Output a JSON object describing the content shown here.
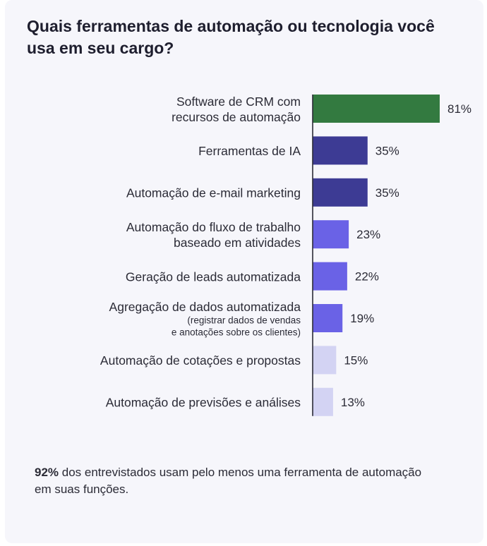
{
  "title": "Quais ferramentas de automação ou tecnologia você usa em seu cargo?",
  "chart_data": {
    "type": "bar",
    "orientation": "horizontal",
    "title": "Quais ferramentas de automação ou tecnologia você usa em seu cargo?",
    "unit": "%",
    "xlim": [
      0,
      100
    ],
    "categories": [
      {
        "lines": [
          "Software de CRM com",
          "recursos de automação"
        ],
        "note": [],
        "value": 81,
        "label": "81%",
        "color": "#337a40"
      },
      {
        "lines": [
          "Ferramentas de IA"
        ],
        "note": [],
        "value": 35,
        "label": "35%",
        "color": "#3d3b94"
      },
      {
        "lines": [
          "Automação de e-mail marketing"
        ],
        "note": [],
        "value": 35,
        "label": "35%",
        "color": "#3d3b94"
      },
      {
        "lines": [
          "Automação do fluxo de trabalho",
          "baseado em atividades"
        ],
        "note": [],
        "value": 23,
        "label": "23%",
        "color": "#6a62e6"
      },
      {
        "lines": [
          "Geração de leads automatizada"
        ],
        "note": [],
        "value": 22,
        "label": "22%",
        "color": "#6a62e6"
      },
      {
        "lines": [
          "Agregação de dados automatizada"
        ],
        "note": [
          "(registrar dados de vendas",
          "e anotações sobre os clientes)"
        ],
        "value": 19,
        "label": "19%",
        "color": "#6a62e6"
      },
      {
        "lines": [
          "Automação de cotações e propostas"
        ],
        "note": [],
        "value": 15,
        "label": "15%",
        "color": "#d3d3f3"
      },
      {
        "lines": [
          "Automação de previsões e análises"
        ],
        "note": [],
        "value": 13,
        "label": "13%",
        "color": "#d3d3f3"
      }
    ]
  },
  "footer": {
    "highlight": "92%",
    "text": " dos entrevistados usam pelo menos uma ferramenta de automação em suas funções."
  }
}
